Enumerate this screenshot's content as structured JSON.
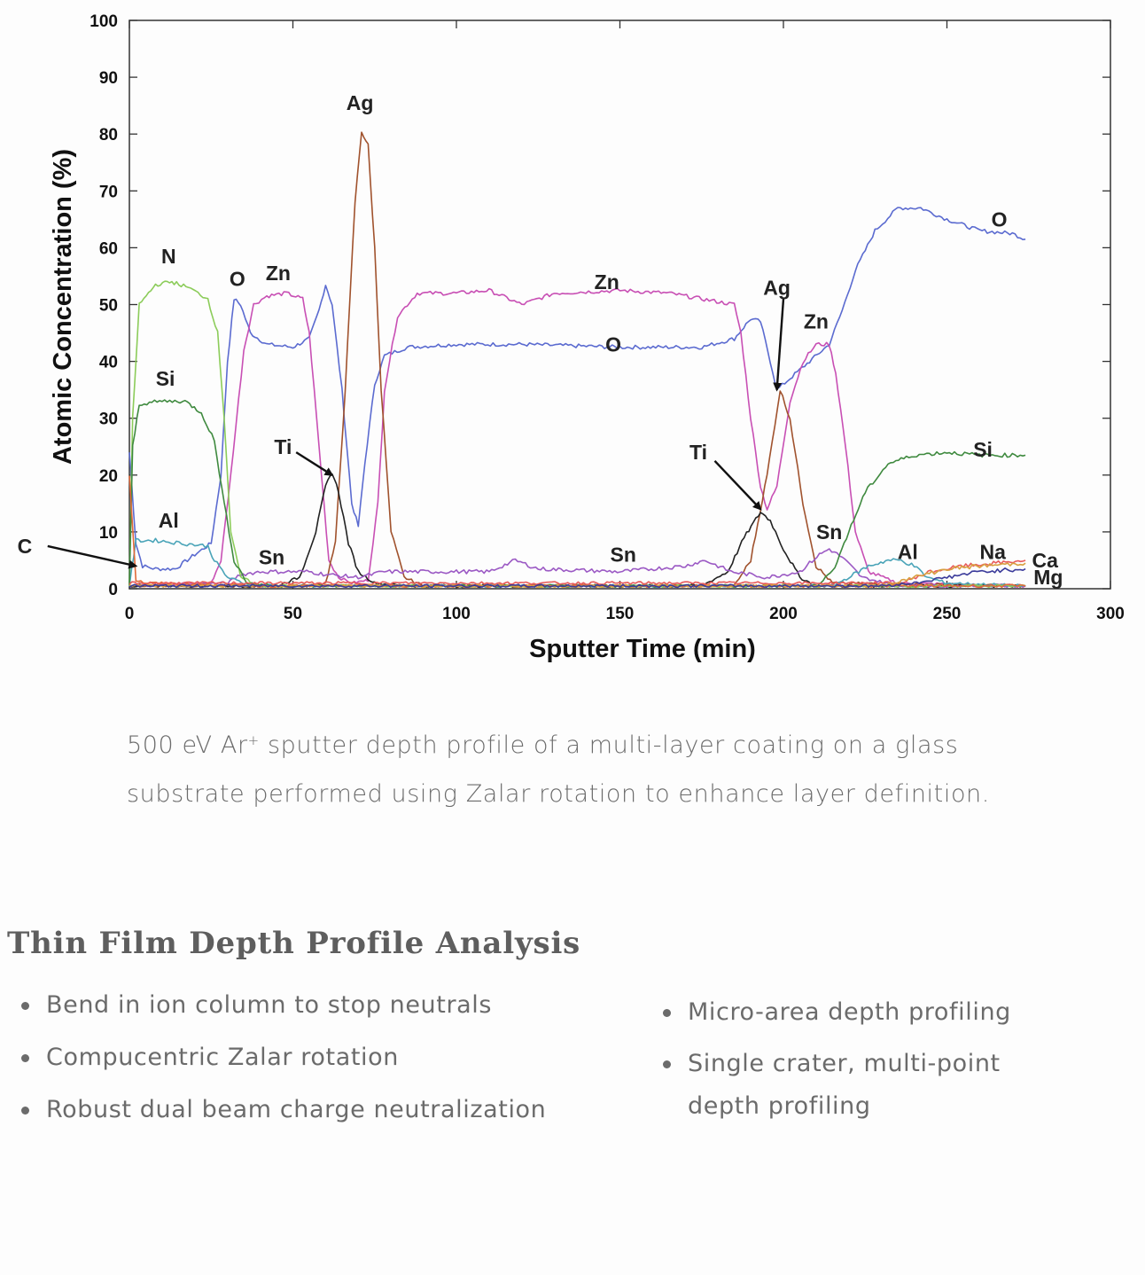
{
  "chart_data": {
    "type": "line",
    "xlabel": "Sputter Time (min)",
    "ylabel": "Atomic Concentration (%)",
    "xlim": [
      0,
      300
    ],
    "ylim": [
      0,
      100
    ],
    "x_ticks": [
      0,
      50,
      100,
      150,
      200,
      250,
      300
    ],
    "y_ticks": [
      0,
      10,
      20,
      30,
      40,
      50,
      60,
      70,
      80,
      90,
      100
    ],
    "grid": false,
    "legend": "none",
    "series": [
      {
        "color": "#5b6bd0",
        "points": [
          [
            0,
            24
          ],
          [
            2,
            8
          ],
          [
            4,
            4
          ],
          [
            8,
            3.5
          ],
          [
            14,
            3.5
          ],
          [
            20,
            6
          ],
          [
            25,
            8
          ],
          [
            28,
            20
          ],
          [
            30,
            40
          ],
          [
            32,
            51
          ],
          [
            34,
            50
          ],
          [
            37,
            45
          ],
          [
            42,
            43
          ],
          [
            50,
            42.5
          ],
          [
            55,
            44
          ],
          [
            58,
            49
          ],
          [
            60,
            53.5
          ],
          [
            62,
            50
          ],
          [
            65,
            35
          ],
          [
            68,
            15
          ],
          [
            70,
            11
          ],
          [
            72,
            22
          ],
          [
            75,
            36
          ],
          [
            78,
            41
          ],
          [
            85,
            42.5
          ],
          [
            100,
            43
          ],
          [
            120,
            43
          ],
          [
            150,
            42.5
          ],
          [
            175,
            42.5
          ],
          [
            185,
            44
          ],
          [
            190,
            47.5
          ],
          [
            193,
            47
          ],
          [
            196,
            40
          ],
          [
            198,
            35
          ],
          [
            202,
            37
          ],
          [
            208,
            40
          ],
          [
            214,
            43
          ],
          [
            218,
            49
          ],
          [
            222,
            56
          ],
          [
            228,
            63
          ],
          [
            235,
            67
          ],
          [
            242,
            67
          ],
          [
            250,
            65
          ],
          [
            260,
            63
          ],
          [
            270,
            62.5
          ],
          [
            274,
            61.5
          ]
        ]
      },
      {
        "color": "#c84fb4",
        "points": [
          [
            0,
            0.5
          ],
          [
            25,
            1
          ],
          [
            28,
            5
          ],
          [
            31,
            20
          ],
          [
            35,
            42
          ],
          [
            38,
            50
          ],
          [
            42,
            51.5
          ],
          [
            48,
            52
          ],
          [
            53,
            51
          ],
          [
            55,
            45
          ],
          [
            58,
            25
          ],
          [
            61,
            5
          ],
          [
            64,
            2
          ],
          [
            68,
            1
          ],
          [
            73,
            1.5
          ],
          [
            76,
            15
          ],
          [
            78,
            35
          ],
          [
            82,
            48
          ],
          [
            88,
            52
          ],
          [
            100,
            52
          ],
          [
            110,
            52.5
          ],
          [
            120,
            50
          ],
          [
            130,
            52
          ],
          [
            150,
            52.5
          ],
          [
            165,
            52
          ],
          [
            175,
            51
          ],
          [
            185,
            50
          ],
          [
            187,
            45
          ],
          [
            190,
            30
          ],
          [
            193,
            18
          ],
          [
            195,
            14
          ],
          [
            198,
            18
          ],
          [
            202,
            33
          ],
          [
            206,
            40
          ],
          [
            210,
            43
          ],
          [
            214,
            43
          ],
          [
            216,
            38
          ],
          [
            219,
            25
          ],
          [
            222,
            10
          ],
          [
            226,
            3
          ],
          [
            235,
            1
          ],
          [
            274,
            0.5
          ]
        ]
      },
      {
        "color": "#a0522d",
        "points": [
          [
            0,
            0.5
          ],
          [
            55,
            0.5
          ],
          [
            60,
            1
          ],
          [
            63,
            8
          ],
          [
            66,
            35
          ],
          [
            69,
            68
          ],
          [
            71,
            80.5
          ],
          [
            73,
            78
          ],
          [
            75,
            60
          ],
          [
            77,
            35
          ],
          [
            80,
            10
          ],
          [
            84,
            2
          ],
          [
            90,
            0.5
          ],
          [
            185,
            0.5
          ],
          [
            190,
            5
          ],
          [
            195,
            20
          ],
          [
            199,
            35
          ],
          [
            202,
            30
          ],
          [
            206,
            15
          ],
          [
            210,
            4
          ],
          [
            215,
            1
          ],
          [
            274,
            0.5
          ]
        ]
      },
      {
        "color": "#222222",
        "points": [
          [
            0,
            0.5
          ],
          [
            45,
            0.5
          ],
          [
            52,
            2
          ],
          [
            57,
            10
          ],
          [
            60,
            18
          ],
          [
            62,
            20.5
          ],
          [
            64,
            17
          ],
          [
            67,
            8
          ],
          [
            70,
            3
          ],
          [
            75,
            1
          ],
          [
            85,
            0.5
          ],
          [
            175,
            0.5
          ],
          [
            183,
            3
          ],
          [
            188,
            9
          ],
          [
            193,
            13.5
          ],
          [
            196,
            12
          ],
          [
            200,
            7
          ],
          [
            205,
            2
          ],
          [
            210,
            0.5
          ],
          [
            274,
            0.5
          ]
        ]
      },
      {
        "color": "#9b59c4",
        "points": [
          [
            0,
            0.5
          ],
          [
            30,
            1
          ],
          [
            34,
            2.5
          ],
          [
            40,
            3
          ],
          [
            55,
            3
          ],
          [
            60,
            2.5
          ],
          [
            70,
            2
          ],
          [
            78,
            3
          ],
          [
            100,
            3
          ],
          [
            110,
            3
          ],
          [
            118,
            5
          ],
          [
            125,
            3.5
          ],
          [
            150,
            3
          ],
          [
            170,
            4
          ],
          [
            176,
            5
          ],
          [
            184,
            3
          ],
          [
            195,
            2
          ],
          [
            205,
            3
          ],
          [
            211,
            6
          ],
          [
            214,
            7
          ],
          [
            218,
            5.5
          ],
          [
            224,
            2
          ],
          [
            235,
            0.5
          ],
          [
            274,
            0.5
          ]
        ]
      },
      {
        "color": "#4aa4b8",
        "points": [
          [
            0,
            0.5
          ],
          [
            2,
            8.5
          ],
          [
            8,
            8.5
          ],
          [
            16,
            8
          ],
          [
            24,
            7.5
          ],
          [
            26,
            5
          ],
          [
            30,
            2
          ],
          [
            35,
            1
          ],
          [
            45,
            0.5
          ],
          [
            215,
            0.5
          ],
          [
            220,
            2
          ],
          [
            226,
            4
          ],
          [
            232,
            5
          ],
          [
            236,
            5
          ],
          [
            240,
            4
          ],
          [
            244,
            2
          ],
          [
            250,
            1
          ],
          [
            274,
            0.5
          ]
        ]
      },
      {
        "color": "#8ccc5a",
        "points": [
          [
            0,
            0.5
          ],
          [
            1,
            30
          ],
          [
            3,
            50
          ],
          [
            8,
            53.5
          ],
          [
            13,
            54
          ],
          [
            18,
            53
          ],
          [
            24,
            51
          ],
          [
            27,
            45
          ],
          [
            29,
            30
          ],
          [
            31,
            10
          ],
          [
            34,
            2
          ],
          [
            40,
            0.5
          ],
          [
            274,
            0.5
          ]
        ]
      },
      {
        "color": "#3f8a3f",
        "points": [
          [
            0,
            0.5
          ],
          [
            1,
            25
          ],
          [
            3,
            32.5
          ],
          [
            10,
            33
          ],
          [
            17,
            33
          ],
          [
            22,
            31
          ],
          [
            26,
            26
          ],
          [
            29,
            15
          ],
          [
            32,
            5
          ],
          [
            36,
            1
          ],
          [
            45,
            0.5
          ],
          [
            210,
            0.5
          ],
          [
            215,
            3
          ],
          [
            220,
            10
          ],
          [
            225,
            17
          ],
          [
            232,
            22
          ],
          [
            240,
            23.5
          ],
          [
            250,
            24
          ],
          [
            260,
            23.5
          ],
          [
            270,
            23.5
          ],
          [
            274,
            23.5
          ]
        ]
      },
      {
        "color": "#e06a3a",
        "points": [
          [
            0,
            20
          ],
          [
            2,
            1.5
          ],
          [
            5,
            1
          ],
          [
            40,
            0.5
          ],
          [
            274,
            0.5
          ]
        ]
      },
      {
        "color": "#e85a5a",
        "points": [
          [
            0,
            1
          ],
          [
            150,
            1
          ],
          [
            236,
            1
          ],
          [
            245,
            3
          ],
          [
            255,
            4
          ],
          [
            265,
            4.5
          ],
          [
            274,
            5
          ]
        ]
      },
      {
        "color": "#d8a040",
        "points": [
          [
            0,
            0.5
          ],
          [
            230,
            0.5
          ],
          [
            240,
            2
          ],
          [
            250,
            3.5
          ],
          [
            260,
            4
          ],
          [
            274,
            4.5
          ]
        ]
      },
      {
        "color": "#3a3a9a",
        "points": [
          [
            0,
            0.5
          ],
          [
            230,
            0.5
          ],
          [
            240,
            1
          ],
          [
            250,
            2
          ],
          [
            260,
            3
          ],
          [
            274,
            3.5
          ]
        ]
      }
    ],
    "annotations": [
      {
        "text": "N",
        "x": 12,
        "y": 58.5
      },
      {
        "text": "Si",
        "x": 11,
        "y": 37
      },
      {
        "text": "Al",
        "x": 12,
        "y": 12
      },
      {
        "text": "C",
        "x": -32,
        "y": 7.5
      },
      {
        "text": "O",
        "x": 33,
        "y": 54.5
      },
      {
        "text": "Zn",
        "x": 45.5,
        "y": 55.5
      },
      {
        "text": "Sn",
        "x": 43.5,
        "y": 5.5
      },
      {
        "text": "Ti",
        "x": 47,
        "y": 25
      },
      {
        "text": "Ag",
        "x": 70.5,
        "y": 85.5
      },
      {
        "text": "Zn",
        "x": 146,
        "y": 54
      },
      {
        "text": "O",
        "x": 148,
        "y": 43
      },
      {
        "text": "Sn",
        "x": 151,
        "y": 6
      },
      {
        "text": "Ti",
        "x": 174,
        "y": 24
      },
      {
        "text": "Ag",
        "x": 198,
        "y": 53
      },
      {
        "text": "Zn",
        "x": 210,
        "y": 47
      },
      {
        "text": "Sn",
        "x": 214,
        "y": 10
      },
      {
        "text": "Al",
        "x": 238,
        "y": 6.5
      },
      {
        "text": "Si",
        "x": 261,
        "y": 24.5
      },
      {
        "text": "O",
        "x": 266,
        "y": 65
      },
      {
        "text": "Na",
        "x": 264,
        "y": 6.5
      },
      {
        "text": "Ca",
        "x": 280,
        "y": 5
      },
      {
        "text": "Mg",
        "x": 281,
        "y": 2
      }
    ],
    "arrows": [
      {
        "from": [
          -25,
          7.5
        ],
        "to": [
          2,
          4
        ]
      },
      {
        "from": [
          51,
          24
        ],
        "to": [
          62,
          20
        ]
      },
      {
        "from": [
          179,
          22.5
        ],
        "to": [
          193,
          14
        ]
      },
      {
        "from": [
          200,
          51
        ],
        "to": [
          198,
          35
        ]
      }
    ]
  },
  "caption": {
    "line1_pre": "500 eV Ar",
    "line1_sup": "+",
    "line1_post": " sputter depth profile of a multi-layer coating on a glass",
    "line2": "substrate performed using Zalar rotation to enhance layer definition."
  },
  "section_title": "Thin Film Depth Profile Analysis",
  "bullets_left": [
    "Bend in ion column to stop neutrals",
    "Compucentric Zalar rotation",
    "Robust dual beam charge neutralization"
  ],
  "bullets_right": [
    {
      "line1": "Micro-area depth profiling"
    },
    {
      "line1": "Single crater, multi-point",
      "line2": "depth profiling"
    }
  ]
}
